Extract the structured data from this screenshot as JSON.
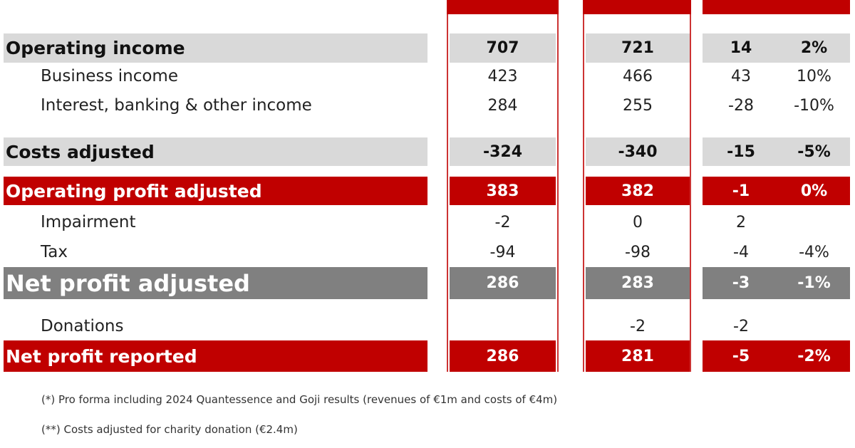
{
  "colors": {
    "red": "#c00000",
    "light_gray": "#d9d9d9",
    "dark_gray": "#808080"
  },
  "rows": [
    {
      "style": "light",
      "label": "Operating income",
      "c1": "707",
      "c2": "721",
      "diff": "14",
      "pct": "2%"
    },
    {
      "style": "plain",
      "label": "Business income",
      "c1": "423",
      "c2": "466",
      "diff": "43",
      "pct": "10%"
    },
    {
      "style": "plain",
      "label": "Interest, banking & other income",
      "c1": "284",
      "c2": "255",
      "diff": "-28",
      "pct": "-10%"
    },
    {
      "style": "light",
      "label": "Costs adjusted",
      "c1": "-324",
      "c2": "-340",
      "diff": "-15",
      "pct": "-5%"
    },
    {
      "style": "red",
      "label": "Operating profit adjusted",
      "c1": "383",
      "c2": "382",
      "diff": "-1",
      "pct": "0%"
    },
    {
      "style": "plain",
      "label": "Impairment",
      "c1": "-2",
      "c2": "0",
      "diff": "2",
      "pct": ""
    },
    {
      "style": "plain",
      "label": "Tax",
      "c1": "-94",
      "c2": "-98",
      "diff": "-4",
      "pct": "-4%"
    },
    {
      "style": "dark",
      "label": "Net profit adjusted",
      "c1": "286",
      "c2": "283",
      "diff": "-3",
      "pct": "-1%"
    },
    {
      "style": "plain",
      "label": "Donations",
      "c1": "",
      "c2": "-2",
      "diff": "-2",
      "pct": ""
    },
    {
      "style": "red",
      "label": "Net profit reported",
      "c1": "286",
      "c2": "281",
      "diff": "-5",
      "pct": "-2%"
    }
  ],
  "footnotes": [
    "(*) Pro forma including 2024 Quantessence and Goji results (revenues of €1m and costs of €4m)",
    "(**) Costs adjusted for charity donation (€2.4m)"
  ]
}
